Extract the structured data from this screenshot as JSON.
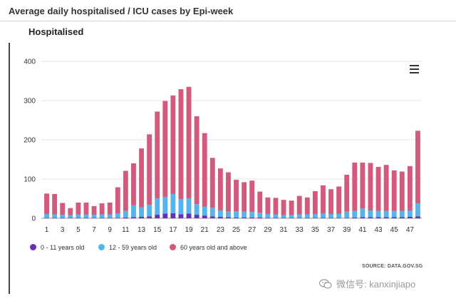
{
  "page_title": "Average daily hospitalised / ICU cases by Epi-week",
  "panel_title": "Hospitalised",
  "source": "SOURCE: DATA.GOV.SG",
  "watermark": "微信号: kanxinjiapo",
  "colors": {
    "series_0_11": "#6a2fb5",
    "series_12_59": "#56b4ec",
    "series_60_plus": "#d35a7c",
    "gridline": "#e6e6e6",
    "axis_text": "#333333"
  },
  "icons": {
    "menu": "hamburger-menu-icon",
    "watermark": "wechat-icon"
  },
  "chart_data": {
    "type": "bar",
    "stacked": true,
    "grid": true,
    "legend_position": "bottom-left",
    "ylim": [
      0,
      400
    ],
    "yticks": [
      0,
      100,
      200,
      300,
      400
    ],
    "x": [
      1,
      2,
      3,
      4,
      5,
      6,
      7,
      8,
      9,
      10,
      11,
      12,
      13,
      14,
      15,
      16,
      17,
      18,
      19,
      20,
      21,
      22,
      23,
      24,
      25,
      26,
      27,
      28,
      29,
      30,
      31,
      32,
      33,
      34,
      35,
      36,
      37,
      38,
      39,
      40,
      41,
      42,
      43,
      44,
      45,
      46,
      47,
      48
    ],
    "xtick_labels": [
      "1",
      "3",
      "5",
      "7",
      "9",
      "11",
      "13",
      "15",
      "17",
      "19",
      "21",
      "23",
      "25",
      "27",
      "29",
      "31",
      "33",
      "35",
      "37",
      "39",
      "41",
      "43",
      "45",
      "47"
    ],
    "series": [
      {
        "name": "0 - 11 years old",
        "values": [
          1,
          1,
          1,
          1,
          1,
          1,
          1,
          1,
          1,
          1,
          2,
          3,
          4,
          5,
          9,
          12,
          13,
          10,
          12,
          9,
          7,
          5,
          4,
          3,
          2,
          2,
          2,
          2,
          1,
          1,
          1,
          1,
          1,
          1,
          1,
          1,
          1,
          1,
          1,
          2,
          3,
          3,
          3,
          3,
          3,
          3,
          4,
          5
        ]
      },
      {
        "name": "12 - 59 years old",
        "values": [
          10,
          9,
          8,
          7,
          9,
          9,
          8,
          9,
          9,
          11,
          17,
          30,
          24,
          29,
          42,
          42,
          49,
          39,
          39,
          27,
          23,
          22,
          16,
          14,
          16,
          15,
          14,
          12,
          10,
          9,
          7,
          7,
          9,
          9,
          10,
          11,
          10,
          10,
          16,
          17,
          22,
          17,
          16,
          16,
          16,
          16,
          16,
          33
        ]
      },
      {
        "name": "60 years old and above",
        "values": [
          52,
          52,
          30,
          18,
          30,
          30,
          22,
          28,
          30,
          67,
          102,
          107,
          150,
          180,
          221,
          245,
          251,
          280,
          284,
          224,
          187,
          127,
          107,
          100,
          80,
          75,
          80,
          54,
          42,
          42,
          39,
          37,
          47,
          43,
          58,
          72,
          63,
          70,
          94,
          123,
          117,
          121,
          112,
          117,
          103,
          100,
          113,
          185
        ]
      }
    ]
  }
}
